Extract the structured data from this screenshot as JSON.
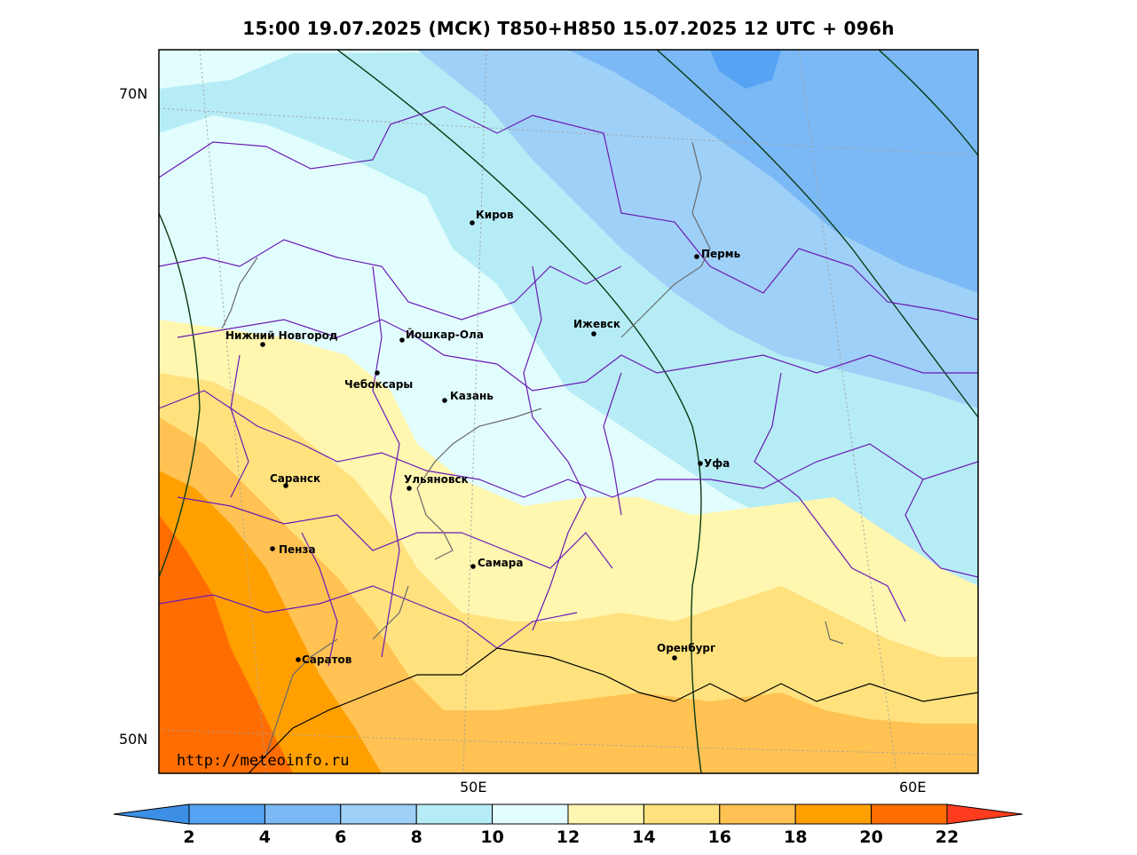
{
  "title": "15:00 19.07.2025 (МСК) T850+H850 15.07.2025 12 UTC + 096h",
  "axes": {
    "lat_labels": [
      "70N",
      "50N"
    ],
    "lon_labels": [
      "50E",
      "60E"
    ]
  },
  "cities": [
    {
      "name": "Киров"
    },
    {
      "name": "Пермь"
    },
    {
      "name": "Нижний Новгород"
    },
    {
      "name": "Йошкар-Ола"
    },
    {
      "name": "Ижевск"
    },
    {
      "name": "Чебоксары"
    },
    {
      "name": "Казань"
    },
    {
      "name": "Уфа"
    },
    {
      "name": "Саранск"
    },
    {
      "name": "Ульяновск"
    },
    {
      "name": "Пенза"
    },
    {
      "name": "Самара"
    },
    {
      "name": "Оренбург"
    },
    {
      "name": "Саратов"
    }
  ],
  "credit": "http://meteoinfo.ru",
  "colorbar": {
    "ticks": [
      "2",
      "4",
      "6",
      "8",
      "10",
      "12",
      "14",
      "16",
      "18",
      "20",
      "22"
    ],
    "colors": [
      "#3d8fe6",
      "#55a3f2",
      "#7ab9f5",
      "#9fd0f7",
      "#b6ecf6",
      "#e2fdfd",
      "#fff6b0",
      "#ffe27e",
      "#ffc253",
      "#ffa000",
      "#ff6d00",
      "#ff3c1e"
    ]
  }
}
